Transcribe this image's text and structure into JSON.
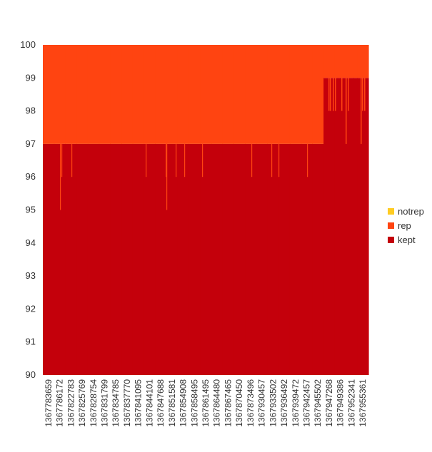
{
  "chart_data": {
    "type": "area",
    "stacked": true,
    "title": "",
    "xlabel": "",
    "ylabel": "",
    "ylim": [
      90,
      100
    ],
    "yticks": [
      90,
      91,
      92,
      93,
      94,
      95,
      96,
      97,
      98,
      99,
      100
    ],
    "grid": false,
    "legend_position": "right",
    "x_tick_labels": [
      "1367783659",
      "1367786172",
      "1367822783",
      "1367825769",
      "1367828754",
      "1367831799",
      "1367834785",
      "1367837770",
      "1367841095",
      "1367844101",
      "1367847688",
      "1367851581",
      "1367854908",
      "1367858495",
      "1367861495",
      "1367864480",
      "1367867465",
      "1367870450",
      "1367873496",
      "1367930457",
      "1367933502",
      "1367936492",
      "1367939472",
      "1367942457",
      "1367945502",
      "1367947268",
      "1367949386",
      "1367952341",
      "1367955361"
    ],
    "series": [
      {
        "name": "notrep",
        "color": "#ffcc22",
        "values": [
          0,
          0,
          0,
          0,
          0,
          0,
          0,
          0,
          0,
          0,
          0,
          0,
          0,
          0,
          0,
          0,
          0,
          0,
          0,
          0,
          0,
          0,
          0,
          0,
          0,
          0,
          0,
          0,
          0
        ]
      },
      {
        "name": "rep",
        "color": "#ff4411",
        "values": [
          3,
          3,
          3,
          3,
          3,
          3,
          3,
          3,
          3,
          3,
          3,
          3,
          3,
          3,
          3,
          3,
          3,
          3,
          3,
          3,
          3,
          3,
          3,
          3,
          3,
          1,
          1,
          1,
          1
        ]
      },
      {
        "name": "kept",
        "color": "#c4000b",
        "values": [
          97,
          97,
          97,
          97,
          97,
          97,
          97,
          97,
          97,
          97,
          97,
          97,
          97,
          97,
          97,
          97,
          97,
          97,
          97,
          97,
          97,
          97,
          97,
          97,
          97,
          99,
          99,
          99,
          99
        ]
      }
    ]
  }
}
